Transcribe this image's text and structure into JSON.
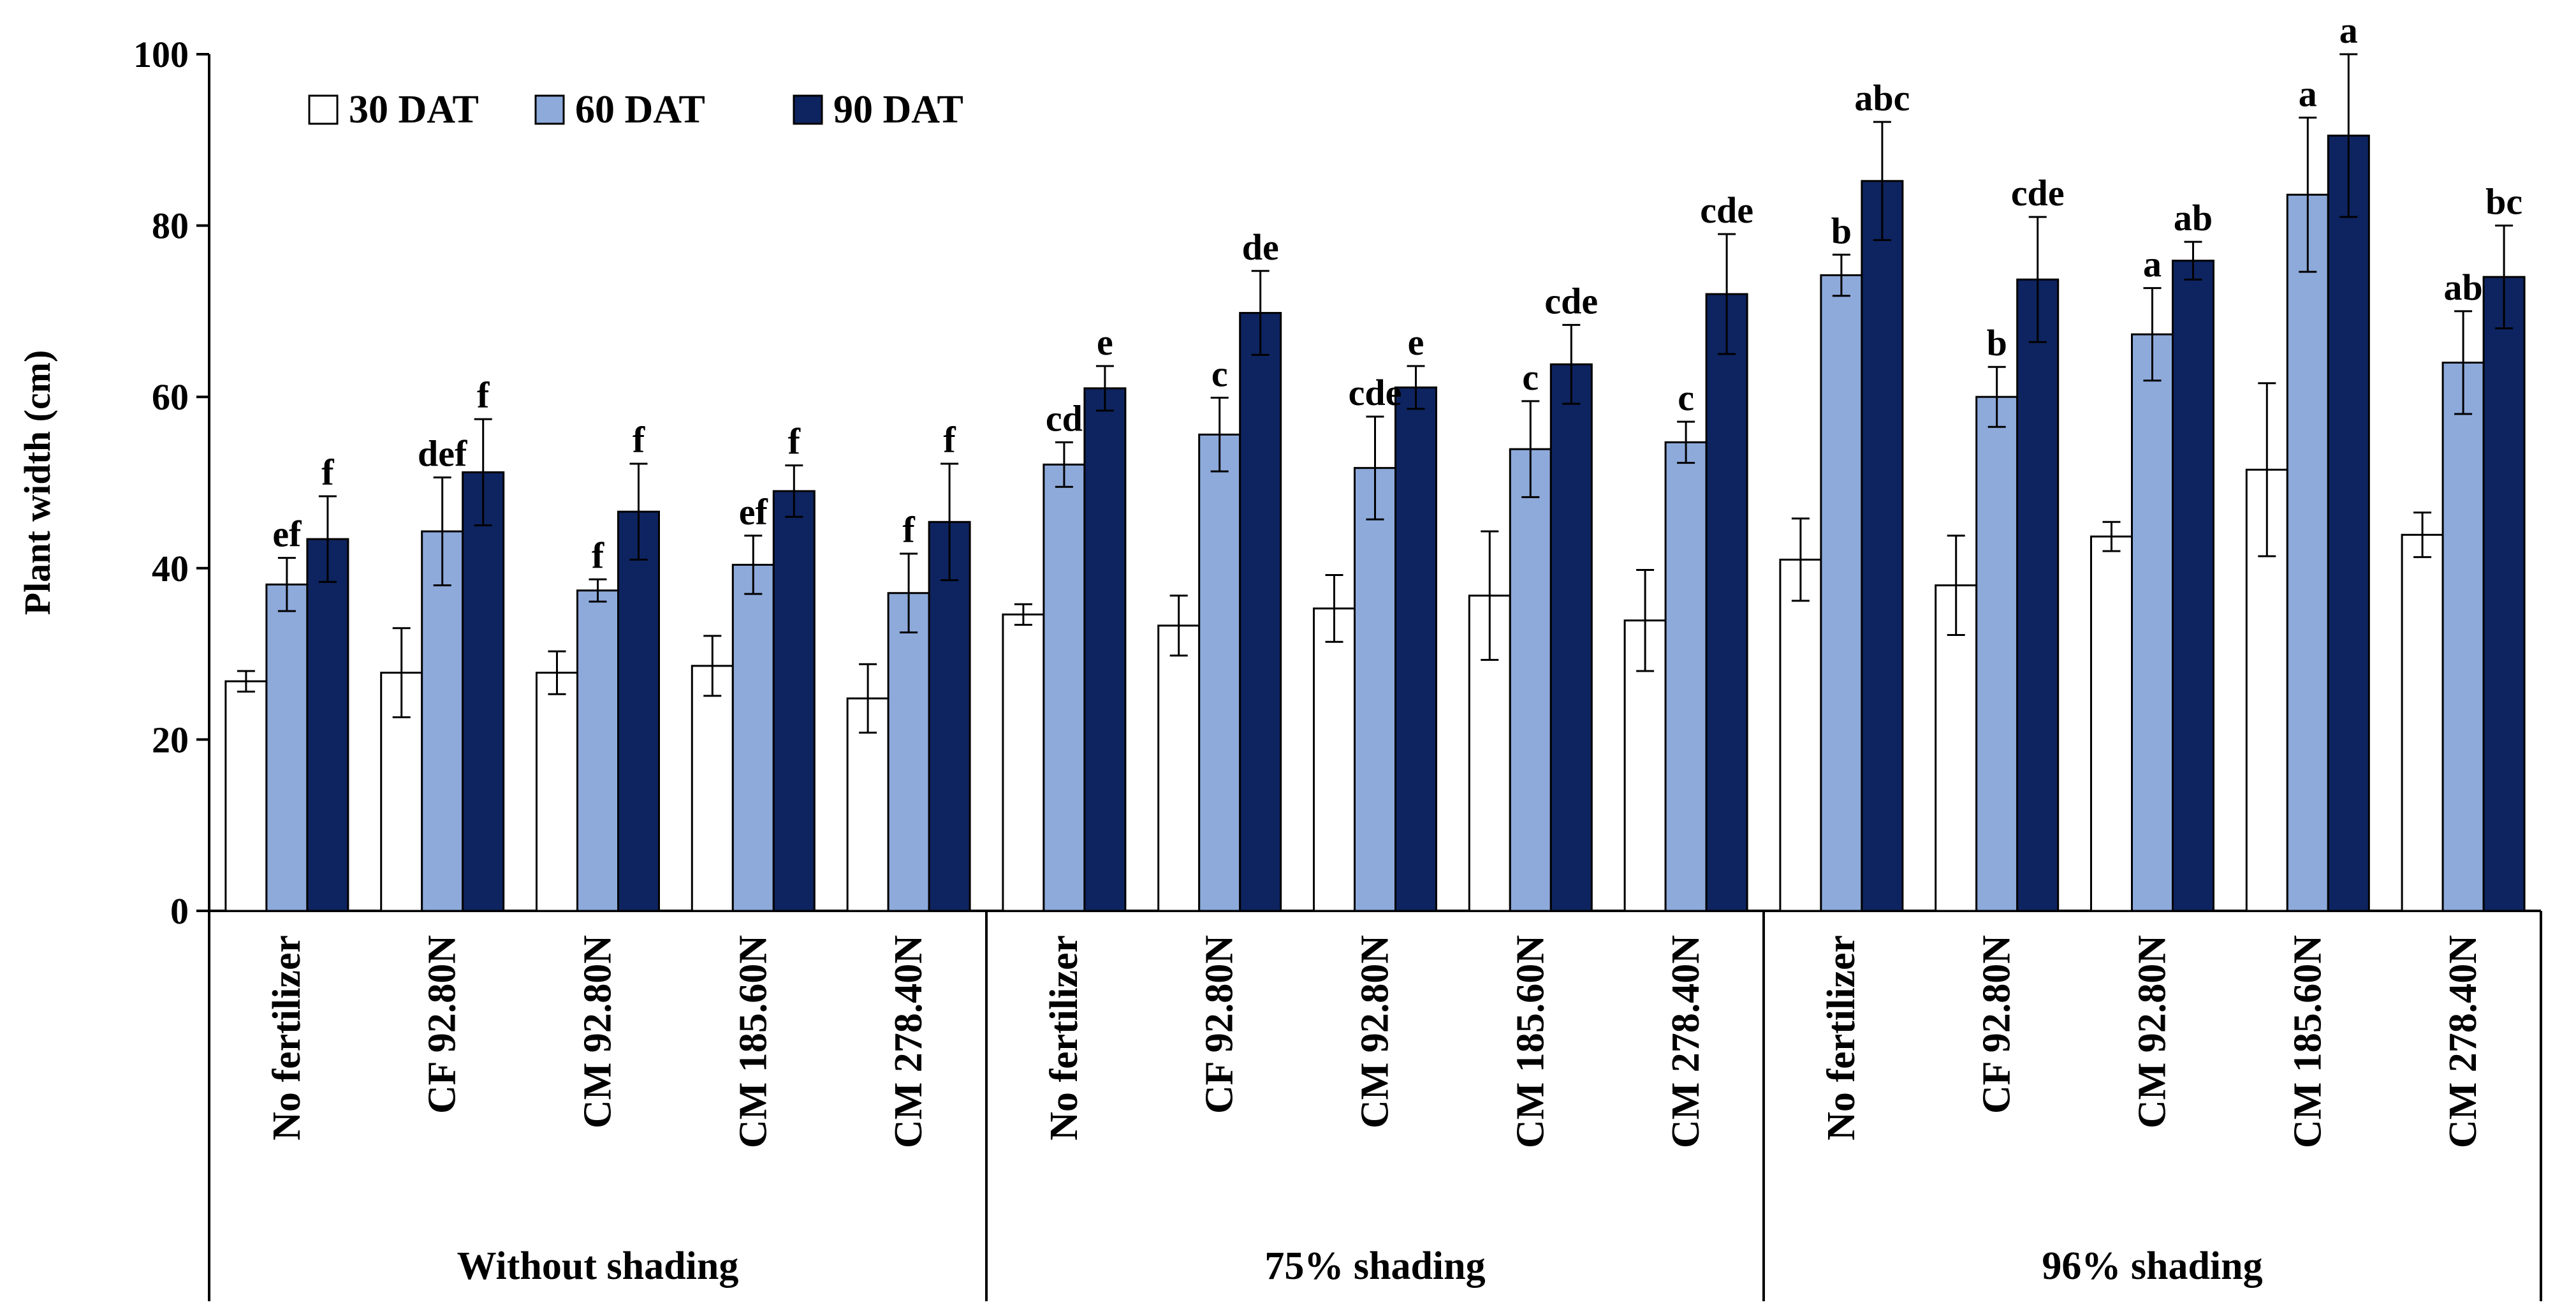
{
  "chart_data": {
    "type": "bar",
    "title": "",
    "ylabel": "Plant width (cm)",
    "xlabel": "",
    "ylim": [
      0,
      100
    ],
    "yticks": [
      0,
      20,
      40,
      60,
      80,
      100
    ],
    "legend_position": "top-left",
    "grid": false,
    "groups": [
      "Without shading",
      "75% shading",
      "96% shading"
    ],
    "categories": [
      "No fertilizer",
      "CF 92.80N",
      "CM 92.80N",
      "CM 185.60N",
      "CM 278.40N",
      "No fertilizer",
      "CF 92.80N",
      "CM 92.80N",
      "CM 185.60N",
      "CM 278.40N",
      "No fertilizer",
      "CF 92.80N",
      "CM 92.80N",
      "CM 185.60N",
      "CM 278.40N"
    ],
    "series": [
      {
        "name": "30 DAT",
        "color": "#ffffff",
        "values": [
          26.8,
          27.8,
          27.8,
          28.6,
          24.8,
          34.6,
          33.3,
          35.3,
          36.8,
          33.9,
          41.0,
          38.0,
          43.7,
          51.5,
          43.9
        ],
        "errors": [
          1.2,
          5.2,
          2.5,
          3.5,
          4.0,
          1.2,
          3.5,
          3.9,
          7.5,
          5.9,
          4.8,
          5.8,
          1.7,
          10.1,
          2.6
        ],
        "labels": [
          "",
          "",
          "",
          "",
          "",
          "",
          "",
          "",
          "",
          "",
          "",
          "",
          "",
          "",
          ""
        ]
      },
      {
        "name": "60 DAT",
        "color": "#8eaadb",
        "values": [
          38.1,
          44.3,
          37.4,
          40.4,
          37.1,
          52.1,
          55.6,
          51.7,
          53.9,
          54.7,
          74.2,
          60.0,
          67.3,
          83.6,
          64.0
        ],
        "errors": [
          3.1,
          6.3,
          1.3,
          3.4,
          4.6,
          2.6,
          4.3,
          6.0,
          5.6,
          2.4,
          2.4,
          3.5,
          5.4,
          9.0,
          6.0
        ],
        "labels": [
          "ef",
          "def",
          "f",
          "ef",
          "f",
          "cd",
          "c",
          "cde",
          "c",
          "c",
          "b",
          "b",
          "a",
          "a",
          "ab"
        ]
      },
      {
        "name": "90 DAT",
        "color": "#0e2460",
        "values": [
          43.4,
          51.2,
          46.6,
          49.0,
          45.4,
          61.0,
          69.8,
          61.1,
          63.8,
          72.0,
          85.2,
          73.7,
          75.9,
          90.5,
          74.0
        ],
        "errors": [
          5.0,
          6.2,
          5.6,
          3.0,
          6.8,
          2.6,
          4.9,
          2.5,
          4.6,
          7.0,
          6.9,
          7.3,
          2.2,
          9.5,
          6.0
        ],
        "labels": [
          "f",
          "f",
          "f",
          "f",
          "f",
          "e",
          "de",
          "e",
          "cde",
          "cde",
          "abc",
          "cde",
          "ab",
          "a",
          "bc"
        ]
      }
    ]
  }
}
